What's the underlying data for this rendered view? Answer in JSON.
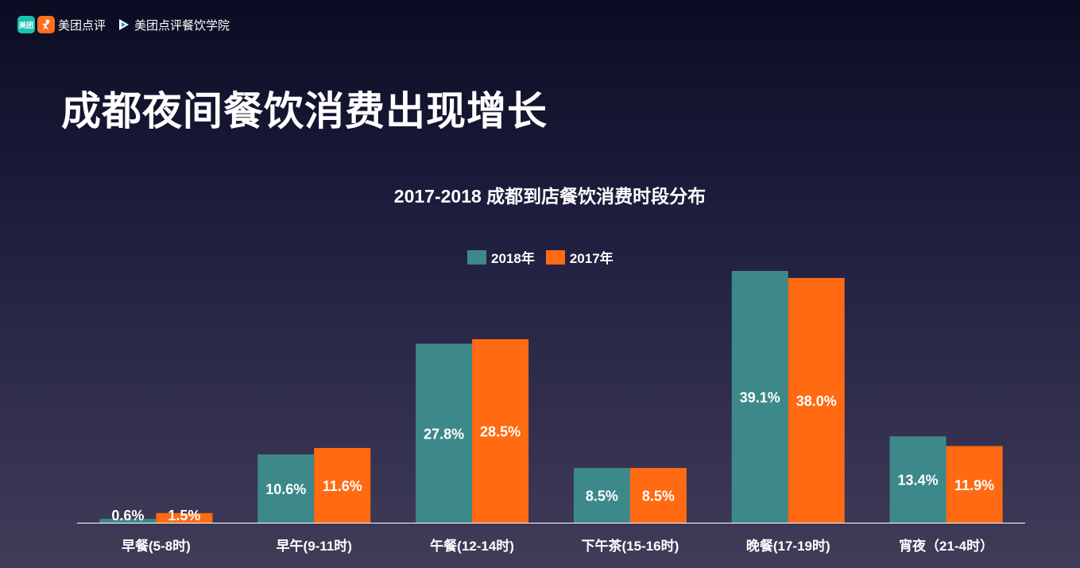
{
  "brand": {
    "logo_mark_text": "美团",
    "name": "美团点评",
    "academy": "美团点评餐饮学院"
  },
  "page_title": "成都夜间餐饮消费出现增长",
  "colors": {
    "series_2018": "#3d898a",
    "series_2017": "#ff6a12"
  },
  "chart_data": {
    "type": "bar",
    "title": "2017-2018 成都到店餐饮消费时段分布",
    "categories": [
      "早餐(5-8时)",
      "早午(9-11时)",
      "午餐(12-14时)",
      "下午茶(15-16时)",
      "晚餐(17-19时)",
      "宵夜（21-4时）"
    ],
    "series": [
      {
        "name": "2018年",
        "values": [
          0.6,
          10.6,
          27.8,
          8.5,
          39.1,
          13.4
        ],
        "labels": [
          "0.6%",
          "10.6%",
          "27.8%",
          "8.5%",
          "39.1%",
          "13.4%"
        ]
      },
      {
        "name": "2017年",
        "values": [
          1.5,
          11.6,
          28.5,
          8.5,
          38.0,
          11.9
        ],
        "labels": [
          "1.5%",
          "11.6%",
          "28.5%",
          "8.5%",
          "38.0%",
          "11.9%"
        ]
      }
    ],
    "ylim": [
      0,
      40
    ],
    "legend_position": "top-center",
    "grid": false
  }
}
